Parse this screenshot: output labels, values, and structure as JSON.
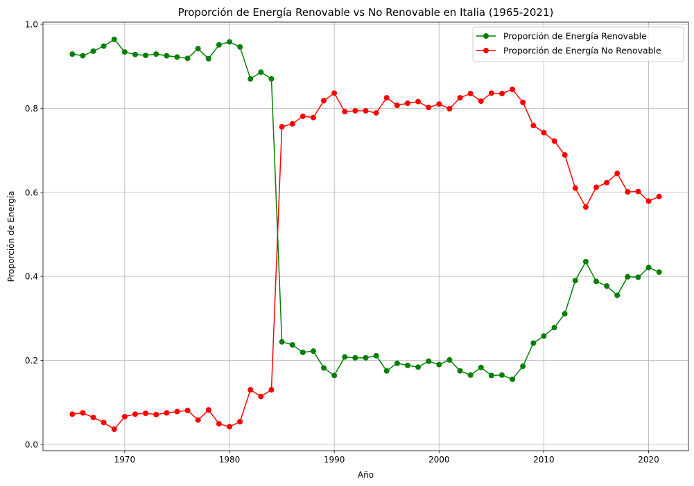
{
  "chart_data": {
    "type": "line",
    "title": "Proporción de Energía Renovable vs No Renovable en Italia (1965-2021)",
    "xlabel": "Año",
    "ylabel": "Proporción de Energía",
    "xlim": [
      1962.2,
      2023.8
    ],
    "ylim": [
      -0.015,
      1.005
    ],
    "xticks": [
      1970,
      1980,
      1990,
      2000,
      2010,
      2020
    ],
    "yticks": [
      0.0,
      0.2,
      0.4,
      0.6,
      0.8,
      1.0
    ],
    "ytick_labels": [
      "0.0",
      "0.2",
      "0.4",
      "0.6",
      "0.8",
      "1.0"
    ],
    "grid": true,
    "legend_position": "top-right",
    "x": [
      1965,
      1966,
      1967,
      1968,
      1969,
      1970,
      1971,
      1972,
      1973,
      1974,
      1975,
      1976,
      1977,
      1978,
      1979,
      1980,
      1981,
      1982,
      1983,
      1984,
      1985,
      1986,
      1987,
      1988,
      1989,
      1990,
      1991,
      1992,
      1993,
      1994,
      1995,
      1996,
      1997,
      1998,
      1999,
      2000,
      2001,
      2002,
      2003,
      2004,
      2005,
      2006,
      2007,
      2008,
      2009,
      2010,
      2011,
      2012,
      2013,
      2014,
      2015,
      2016,
      2017,
      2018,
      2019,
      2020,
      2021
    ],
    "series": [
      {
        "name": "Proporción de Energía Renovable",
        "color": "#008000",
        "values": [
          0.929,
          0.925,
          0.936,
          0.948,
          0.964,
          0.934,
          0.928,
          0.926,
          0.929,
          0.925,
          0.922,
          0.919,
          0.942,
          0.918,
          0.951,
          0.958,
          0.946,
          0.87,
          0.886,
          0.87,
          0.244,
          0.237,
          0.219,
          0.222,
          0.182,
          0.164,
          0.208,
          0.206,
          0.206,
          0.211,
          0.175,
          0.193,
          0.188,
          0.184,
          0.198,
          0.19,
          0.201,
          0.175,
          0.165,
          0.183,
          0.164,
          0.165,
          0.155,
          0.186,
          0.241,
          0.258,
          0.278,
          0.311,
          0.39,
          0.435,
          0.388,
          0.377,
          0.355,
          0.399,
          0.398,
          0.421,
          0.41
        ]
      },
      {
        "name": "Proporción de Energía No Renovable",
        "color": "#ff0000",
        "values": [
          0.072,
          0.075,
          0.064,
          0.052,
          0.036,
          0.066,
          0.072,
          0.074,
          0.071,
          0.075,
          0.078,
          0.081,
          0.058,
          0.082,
          0.049,
          0.042,
          0.054,
          0.13,
          0.114,
          0.13,
          0.756,
          0.763,
          0.781,
          0.778,
          0.818,
          0.836,
          0.792,
          0.794,
          0.794,
          0.789,
          0.825,
          0.807,
          0.812,
          0.816,
          0.802,
          0.81,
          0.799,
          0.825,
          0.835,
          0.817,
          0.836,
          0.835,
          0.845,
          0.814,
          0.759,
          0.742,
          0.722,
          0.689,
          0.61,
          0.565,
          0.612,
          0.623,
          0.645,
          0.601,
          0.602,
          0.579,
          0.59
        ]
      }
    ]
  }
}
